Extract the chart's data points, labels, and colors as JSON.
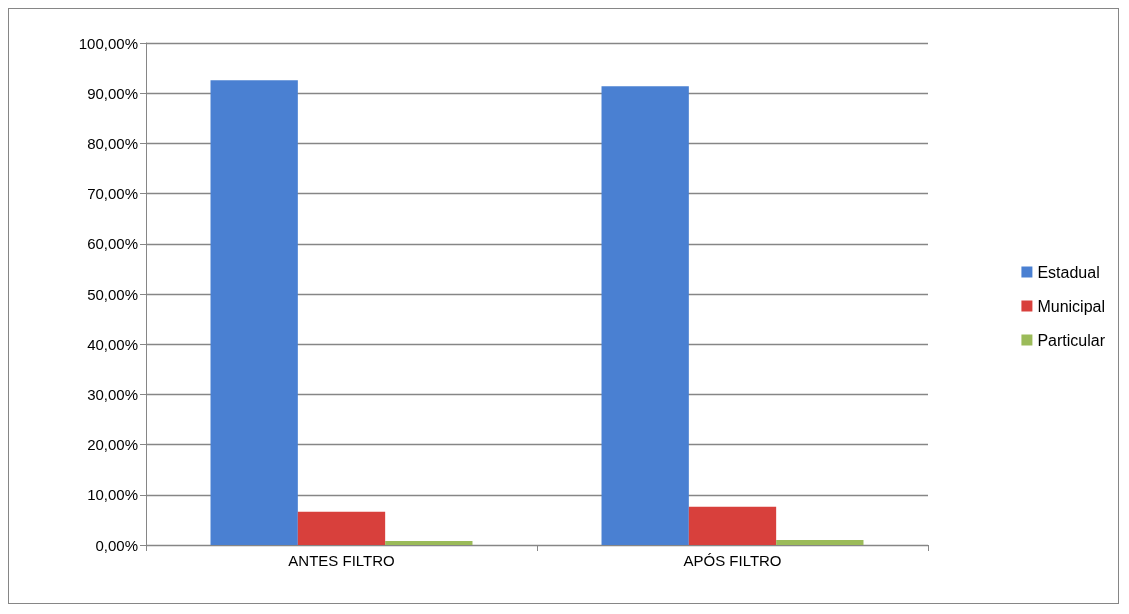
{
  "chart_data": {
    "type": "bar",
    "categories": [
      "ANTES FILTRO",
      "APÓS FILTRO"
    ],
    "series": [
      {
        "name": "Estadual",
        "color": "#4a80d2",
        "values": [
          92.6,
          91.4
        ]
      },
      {
        "name": "Municipal",
        "color": "#d8403c",
        "values": [
          6.6,
          7.6
        ]
      },
      {
        "name": "Particular",
        "color": "#9bbb59",
        "values": [
          0.8,
          1.0
        ]
      }
    ],
    "ylim": [
      0,
      100
    ],
    "yticks": [
      {
        "value": 0,
        "label": "0,00%"
      },
      {
        "value": 10,
        "label": "10,00%"
      },
      {
        "value": 20,
        "label": "20,00%"
      },
      {
        "value": 30,
        "label": "30,00%"
      },
      {
        "value": 40,
        "label": "40,00%"
      },
      {
        "value": 50,
        "label": "50,00%"
      },
      {
        "value": 60,
        "label": "60,00%"
      },
      {
        "value": 70,
        "label": "70,00%"
      },
      {
        "value": 80,
        "label": "80,00%"
      },
      {
        "value": 90,
        "label": "90,00%"
      },
      {
        "value": 100,
        "label": "100,00%"
      }
    ],
    "grid": "y",
    "legend": "right"
  }
}
